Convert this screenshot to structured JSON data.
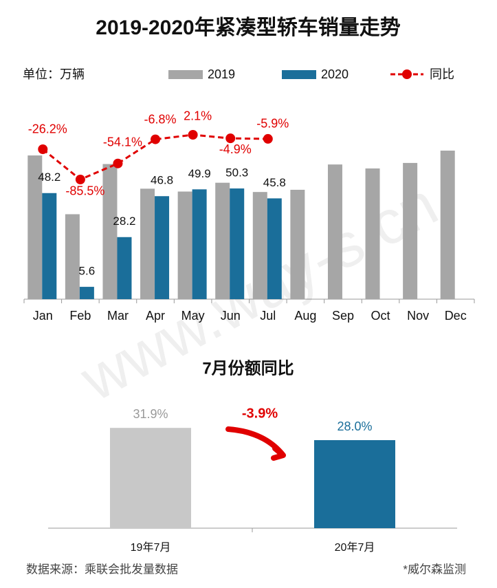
{
  "chart_data": [
    {
      "type": "bar_line",
      "title": "2019-2020年紧凑型轿车销量走势",
      "unit_label": "单位：万辆",
      "categories": [
        "Jan",
        "Feb",
        "Mar",
        "Apr",
        "May",
        "Jun",
        "Jul",
        "Aug",
        "Sep",
        "Oct",
        "Nov",
        "Dec"
      ],
      "ylim": [
        0,
        80
      ],
      "y2lim": [
        -320,
        25
      ],
      "series": [
        {
          "name": "2019",
          "type": "bar",
          "color": "#a6a6a6",
          "values": [
            65.3,
            38.6,
            61.4,
            50.2,
            48.9,
            52.9,
            48.7,
            49.7,
            61.2,
            59.4,
            61.9,
            67.5
          ]
        },
        {
          "name": "2020",
          "type": "bar",
          "color": "#1a6e9a",
          "values": [
            48.2,
            5.6,
            28.2,
            46.8,
            49.9,
            50.3,
            45.8,
            null,
            null,
            null,
            null,
            null
          ]
        },
        {
          "name": "同比",
          "type": "line",
          "axis": "y2",
          "color": "#e00000",
          "values": [
            -26.2,
            -85.5,
            -54.1,
            -6.8,
            2.1,
            -4.9,
            -5.9,
            null,
            null,
            null,
            null,
            null
          ],
          "value_labels": [
            "-26.2%",
            "-85.5%",
            "-54.1%",
            "-6.8%",
            "2.1%",
            "-4.9%",
            "-5.9%",
            null,
            null,
            null,
            null,
            null
          ]
        }
      ]
    },
    {
      "type": "bar",
      "title": "7月份额同比",
      "categories": [
        "19年7月",
        "20年7月"
      ],
      "values": [
        31.9,
        28.0
      ],
      "value_labels": [
        "31.9%",
        "28.0%"
      ],
      "colors": [
        "#c8c8c8",
        "#1a6e9a"
      ],
      "ylim": [
        0,
        35
      ],
      "annotation": "-3.9%",
      "source": "数据来源：乘联会批发量数据",
      "note": "*威尔森监测",
      "watermark": "www.way-s.cn"
    }
  ]
}
